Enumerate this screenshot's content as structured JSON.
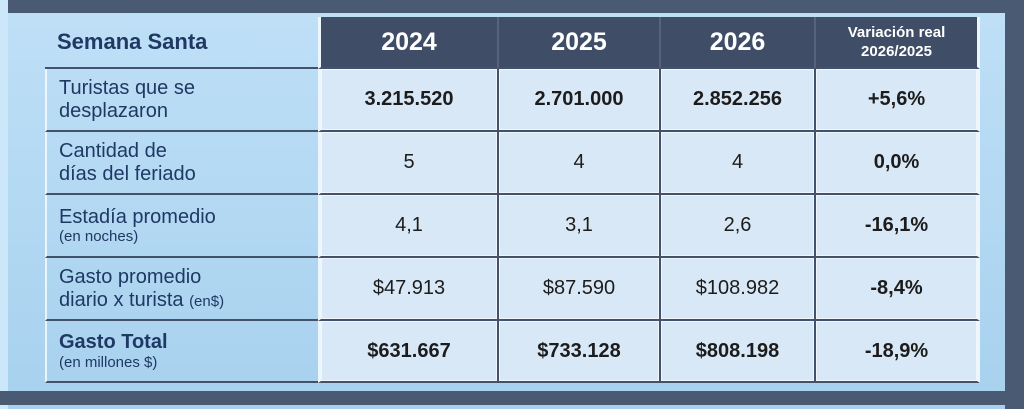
{
  "colors": {
    "frame": "#4a5a72",
    "header_bg": "#3f4e66",
    "grid": "#42526b",
    "cell_bg": "#d9e8f7",
    "label_text": "#1f3864",
    "value_text": "#1c1c1c",
    "page_top": "#bfe0f7",
    "page_bottom": "#a7d1ee",
    "white_edge": "#eef6fd"
  },
  "table": {
    "corner_title": "Semana Santa",
    "year_headers": [
      "2024",
      "2025",
      "2026"
    ],
    "variation_header": {
      "line1": "Variación real",
      "line2": "2026/2025"
    },
    "rows": [
      {
        "label_line1": "Turistas que se",
        "label_line2": "desplazaron",
        "note": "",
        "values": [
          "3.215.520",
          "2.701.000",
          "2.852.256"
        ],
        "variation": "+5,6%"
      },
      {
        "label_line1": "Cantidad de",
        "label_line2": "días del feriado",
        "note": "",
        "values": [
          "5",
          "4",
          "4"
        ],
        "variation": "0,0%"
      },
      {
        "label_line1": "Estadía promedio",
        "label_line2": "",
        "note": "(en noches)",
        "values": [
          "4,1",
          "3,1",
          "2,6"
        ],
        "variation": "-16,1%"
      },
      {
        "label_line1": "Gasto promedio",
        "label_line2": "diario x turista",
        "note": "(en$)",
        "values": [
          "$47.913",
          "$87.590",
          "$108.982"
        ],
        "variation": "-8,4%"
      },
      {
        "label_line1": "Gasto Total",
        "label_line2": "",
        "note": "(en millones $)",
        "values": [
          "$631.667",
          "$733.128",
          "$808.198"
        ],
        "variation": "-18,9%"
      }
    ]
  },
  "chart_data": {
    "type": "table",
    "title": "Semana Santa",
    "columns": [
      "Semana Santa",
      "2024",
      "2025",
      "2026",
      "Variación real 2026/2025"
    ],
    "rows": [
      [
        "Turistas que se desplazaron",
        "3.215.520",
        "2.701.000",
        "2.852.256",
        "+5,6%"
      ],
      [
        "Cantidad de días del feriado",
        "5",
        "4",
        "4",
        "0,0%"
      ],
      [
        "Estadía promedio (en noches)",
        "4,1",
        "3,1",
        "2,6",
        "-16,1%"
      ],
      [
        "Gasto promedio diario x turista (en$)",
        "$47.913",
        "$87.590",
        "$108.982",
        "-8,4%"
      ],
      [
        "Gasto Total (en millones $)",
        "$631.667",
        "$733.128",
        "$808.198",
        "-18,9%"
      ]
    ]
  }
}
